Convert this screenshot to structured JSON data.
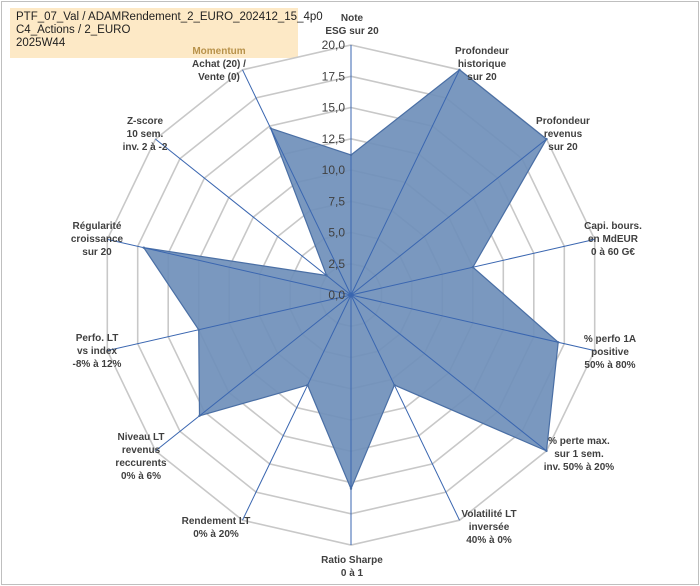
{
  "title_box": {
    "line1": "PTF_07_Val / ADAMRendement_2_EURO_202412_15_4p0",
    "line2": "C4_Actions / 2_EURO",
    "line3": "2025W44"
  },
  "chart_data": {
    "type": "radar",
    "r_min": 0,
    "r_max": 20,
    "ticks": [
      "0,0",
      "2,5",
      "5,0",
      "7,5",
      "10,0",
      "12,5",
      "15,0",
      "17,5",
      "20,0"
    ],
    "tick_values": [
      0,
      2.5,
      5,
      7.5,
      10,
      12.5,
      15,
      17.5,
      20
    ],
    "grid": true,
    "fill_color": "#6f8fba",
    "line_color": "#4a6fa5",
    "axes": [
      {
        "label": [
          "Note",
          "ESG sur 20"
        ],
        "value": 11.2
      },
      {
        "label": [
          "Profondeur",
          "historique",
          "sur 20"
        ],
        "value": 20
      },
      {
        "label": [
          "Profondeur",
          "revenus",
          "sur 20"
        ],
        "value": 20
      },
      {
        "label": [
          "Capi. bours.",
          "en MdEUR",
          "0 à 60 G€"
        ],
        "value": 10
      },
      {
        "label": [
          "% perfo 1A",
          "positive",
          "50% à 80%"
        ],
        "value": 17
      },
      {
        "label": [
          "% perte max.",
          "sur 1 sem.",
          "inv. 50% à 20%"
        ],
        "value": 20
      },
      {
        "label": [
          "Volatilité LT",
          "inversée",
          "40% à 0%"
        ],
        "value": 8
      },
      {
        "label": [
          "Ratio Sharpe",
          "0 à 1"
        ],
        "value": 15.5
      },
      {
        "label": [
          "Rendement LT",
          "0% à 20%"
        ],
        "value": 8
      },
      {
        "label": [
          "Niveau LT",
          "revenus",
          "reccurents",
          "0% à 6%"
        ],
        "value": 15.5
      },
      {
        "label": [
          "Perfo. LT",
          "vs index",
          "-8% à 12%"
        ],
        "value": 12.5
      },
      {
        "label": [
          "Régularité",
          "croissance",
          "sur 20"
        ],
        "value": 17
      },
      {
        "label": [
          "Z-score",
          "10 sem.",
          "inv. 2 à -2"
        ],
        "value": 2.5
      },
      {
        "label": [
          "Momentum",
          "Achat (20) /",
          "Vente (0)"
        ],
        "value": 14.8
      }
    ]
  }
}
